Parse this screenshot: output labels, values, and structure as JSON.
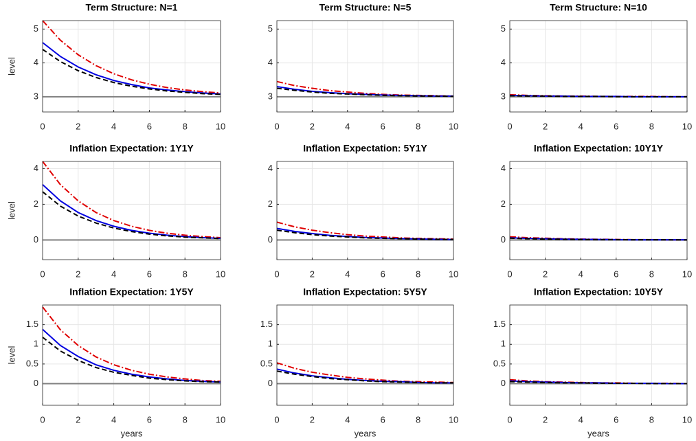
{
  "chart_data": [
    {
      "type": "line",
      "title": "Term Structure: N=1",
      "ylabel": "level",
      "x": [
        0,
        1,
        2,
        3,
        4,
        5,
        6,
        7,
        8,
        9,
        10
      ],
      "xlim": [
        0,
        10
      ],
      "xticks": [
        0,
        2,
        4,
        6,
        8,
        10
      ],
      "ylim": [
        2.55,
        5.25
      ],
      "yticks": [
        3,
        4,
        5
      ],
      "grid": true,
      "reference_line": 3,
      "series": [
        {
          "color": "#e00000",
          "style": "dash-dot",
          "values": [
            5.25,
            4.67,
            4.24,
            3.92,
            3.68,
            3.5,
            3.37,
            3.27,
            3.2,
            3.15,
            3.11
          ]
        },
        {
          "color": "#0000e0",
          "style": "solid",
          "values": [
            4.6,
            4.19,
            3.88,
            3.65,
            3.48,
            3.36,
            3.26,
            3.2,
            3.15,
            3.11,
            3.08
          ]
        },
        {
          "color": "#000000",
          "style": "dashed",
          "values": [
            4.4,
            4.04,
            3.77,
            3.57,
            3.42,
            3.31,
            3.23,
            3.17,
            3.13,
            3.09,
            3.07
          ]
        }
      ]
    },
    {
      "type": "line",
      "title": "Term Structure: N=5",
      "x": [
        0,
        1,
        2,
        3,
        4,
        5,
        6,
        7,
        8,
        9,
        10
      ],
      "xlim": [
        0,
        10
      ],
      "xticks": [
        0,
        2,
        4,
        6,
        8,
        10
      ],
      "ylim": [
        2.55,
        5.25
      ],
      "yticks": [
        3,
        4,
        5
      ],
      "grid": true,
      "reference_line": 3,
      "series": [
        {
          "color": "#e00000",
          "style": "dash-dot",
          "values": [
            3.45,
            3.33,
            3.25,
            3.18,
            3.14,
            3.1,
            3.07,
            3.05,
            3.04,
            3.03,
            3.02
          ]
        },
        {
          "color": "#0000e0",
          "style": "solid",
          "values": [
            3.3,
            3.22,
            3.16,
            3.12,
            3.09,
            3.07,
            3.05,
            3.04,
            3.03,
            3.02,
            3.02
          ]
        },
        {
          "color": "#000000",
          "style": "dashed",
          "values": [
            3.25,
            3.19,
            3.14,
            3.1,
            3.08,
            3.06,
            3.04,
            3.03,
            3.02,
            3.02,
            3.01
          ]
        }
      ]
    },
    {
      "type": "line",
      "title": "Term Structure: N=10",
      "x": [
        0,
        1,
        2,
        3,
        4,
        5,
        6,
        7,
        8,
        9,
        10
      ],
      "xlim": [
        0,
        10
      ],
      "xticks": [
        0,
        2,
        4,
        6,
        8,
        10
      ],
      "ylim": [
        2.55,
        5.25
      ],
      "yticks": [
        3,
        4,
        5
      ],
      "grid": true,
      "reference_line": 3,
      "series": [
        {
          "color": "#e00000",
          "style": "dash-dot",
          "values": [
            3.06,
            3.04,
            3.03,
            3.02,
            3.02,
            3.01,
            3.01,
            3.01,
            3.01,
            3.0,
            3.0
          ]
        },
        {
          "color": "#0000e0",
          "style": "solid",
          "values": [
            3.04,
            3.03,
            3.02,
            3.02,
            3.01,
            3.01,
            3.01,
            3.0,
            3.0,
            3.0,
            3.0
          ]
        },
        {
          "color": "#000000",
          "style": "dashed",
          "values": [
            3.03,
            3.02,
            3.02,
            3.01,
            3.01,
            3.01,
            3.0,
            3.0,
            3.0,
            3.0,
            3.0
          ]
        }
      ]
    },
    {
      "type": "line",
      "title": "Inflation Expectation: 1Y1Y",
      "ylabel": "level",
      "x": [
        0,
        1,
        2,
        3,
        4,
        5,
        6,
        7,
        8,
        9,
        10
      ],
      "xlim": [
        0,
        10
      ],
      "xticks": [
        0,
        2,
        4,
        6,
        8,
        10
      ],
      "ylim": [
        -1.1,
        4.4
      ],
      "yticks": [
        0,
        2,
        4
      ],
      "grid": true,
      "reference_line": 0,
      "series": [
        {
          "color": "#e00000",
          "style": "dash-dot",
          "values": [
            4.4,
            3.1,
            2.19,
            1.54,
            1.09,
            0.77,
            0.54,
            0.38,
            0.27,
            0.19,
            0.13
          ]
        },
        {
          "color": "#0000e0",
          "style": "solid",
          "values": [
            3.1,
            2.19,
            1.54,
            1.09,
            0.77,
            0.54,
            0.38,
            0.27,
            0.19,
            0.13,
            0.09
          ]
        },
        {
          "color": "#000000",
          "style": "dashed",
          "values": [
            2.7,
            1.9,
            1.34,
            0.95,
            0.67,
            0.47,
            0.33,
            0.23,
            0.16,
            0.12,
            0.08
          ]
        }
      ]
    },
    {
      "type": "line",
      "title": "Inflation Expectation: 5Y1Y",
      "x": [
        0,
        1,
        2,
        3,
        4,
        5,
        6,
        7,
        8,
        9,
        10
      ],
      "xlim": [
        0,
        10
      ],
      "xticks": [
        0,
        2,
        4,
        6,
        8,
        10
      ],
      "ylim": [
        -1.1,
        4.4
      ],
      "yticks": [
        0,
        2,
        4
      ],
      "grid": true,
      "reference_line": 0,
      "series": [
        {
          "color": "#e00000",
          "style": "dash-dot",
          "values": [
            1.0,
            0.74,
            0.55,
            0.41,
            0.3,
            0.22,
            0.17,
            0.12,
            0.09,
            0.07,
            0.05
          ]
        },
        {
          "color": "#0000e0",
          "style": "solid",
          "values": [
            0.65,
            0.48,
            0.36,
            0.26,
            0.2,
            0.14,
            0.11,
            0.08,
            0.06,
            0.04,
            0.03
          ]
        },
        {
          "color": "#000000",
          "style": "dashed",
          "values": [
            0.55,
            0.41,
            0.3,
            0.22,
            0.17,
            0.12,
            0.09,
            0.07,
            0.05,
            0.04,
            0.03
          ]
        }
      ]
    },
    {
      "type": "line",
      "title": "Inflation Expectation: 10Y1Y",
      "x": [
        0,
        1,
        2,
        3,
        4,
        5,
        6,
        7,
        8,
        9,
        10
      ],
      "xlim": [
        0,
        10
      ],
      "xticks": [
        0,
        2,
        4,
        6,
        8,
        10
      ],
      "ylim": [
        -1.1,
        4.4
      ],
      "yticks": [
        0,
        2,
        4
      ],
      "grid": true,
      "reference_line": 0,
      "series": [
        {
          "color": "#e00000",
          "style": "dash-dot",
          "values": [
            0.18,
            0.13,
            0.1,
            0.07,
            0.05,
            0.04,
            0.03,
            0.02,
            0.02,
            0.01,
            0.01
          ]
        },
        {
          "color": "#0000e0",
          "style": "solid",
          "values": [
            0.12,
            0.09,
            0.07,
            0.05,
            0.04,
            0.03,
            0.02,
            0.01,
            0.01,
            0.01,
            0.01
          ]
        },
        {
          "color": "#000000",
          "style": "dashed",
          "values": [
            0.1,
            0.07,
            0.05,
            0.04,
            0.03,
            0.02,
            0.02,
            0.01,
            0.01,
            0.01,
            0.0
          ]
        }
      ]
    },
    {
      "type": "line",
      "title": "Inflation Expectation: 1Y5Y",
      "ylabel": "level",
      "xlabel": "years",
      "x": [
        0,
        1,
        2,
        3,
        4,
        5,
        6,
        7,
        8,
        9,
        10
      ],
      "xlim": [
        0,
        10
      ],
      "xticks": [
        0,
        2,
        4,
        6,
        8,
        10
      ],
      "ylim": [
        -0.55,
        2.0
      ],
      "yticks": [
        0,
        0.5,
        1,
        1.5
      ],
      "grid": true,
      "reference_line": 0,
      "series": [
        {
          "color": "#e00000",
          "style": "dash-dot",
          "values": [
            1.95,
            1.37,
            0.97,
            0.68,
            0.48,
            0.34,
            0.24,
            0.17,
            0.12,
            0.08,
            0.06
          ]
        },
        {
          "color": "#0000e0",
          "style": "solid",
          "values": [
            1.38,
            0.97,
            0.69,
            0.48,
            0.34,
            0.24,
            0.17,
            0.12,
            0.08,
            0.06,
            0.04
          ]
        },
        {
          "color": "#000000",
          "style": "dashed",
          "values": [
            1.18,
            0.83,
            0.59,
            0.41,
            0.29,
            0.21,
            0.14,
            0.1,
            0.07,
            0.05,
            0.04
          ]
        }
      ]
    },
    {
      "type": "line",
      "title": "Inflation Expectation: 5Y5Y",
      "xlabel": "years",
      "x": [
        0,
        1,
        2,
        3,
        4,
        5,
        6,
        7,
        8,
        9,
        10
      ],
      "xlim": [
        0,
        10
      ],
      "xticks": [
        0,
        2,
        4,
        6,
        8,
        10
      ],
      "ylim": [
        -0.55,
        2.0
      ],
      "yticks": [
        0,
        0.5,
        1,
        1.5
      ],
      "grid": true,
      "reference_line": 0,
      "series": [
        {
          "color": "#e00000",
          "style": "dash-dot",
          "values": [
            0.53,
            0.39,
            0.29,
            0.22,
            0.16,
            0.12,
            0.09,
            0.06,
            0.05,
            0.04,
            0.03
          ]
        },
        {
          "color": "#0000e0",
          "style": "solid",
          "values": [
            0.37,
            0.27,
            0.2,
            0.15,
            0.11,
            0.08,
            0.06,
            0.05,
            0.03,
            0.02,
            0.02
          ]
        },
        {
          "color": "#000000",
          "style": "dashed",
          "values": [
            0.32,
            0.24,
            0.18,
            0.13,
            0.1,
            0.07,
            0.05,
            0.04,
            0.03,
            0.02,
            0.02
          ]
        }
      ]
    },
    {
      "type": "line",
      "title": "Inflation Expectation: 10Y5Y",
      "xlabel": "years",
      "x": [
        0,
        1,
        2,
        3,
        4,
        5,
        6,
        7,
        8,
        9,
        10
      ],
      "xlim": [
        0,
        10
      ],
      "xticks": [
        0,
        2,
        4,
        6,
        8,
        10
      ],
      "ylim": [
        -0.55,
        2.0
      ],
      "yticks": [
        0,
        0.5,
        1,
        1.5
      ],
      "grid": true,
      "reference_line": 0,
      "series": [
        {
          "color": "#e00000",
          "style": "dash-dot",
          "values": [
            0.1,
            0.07,
            0.05,
            0.04,
            0.03,
            0.02,
            0.02,
            0.01,
            0.01,
            0.01,
            0.0
          ]
        },
        {
          "color": "#0000e0",
          "style": "solid",
          "values": [
            0.07,
            0.05,
            0.04,
            0.03,
            0.02,
            0.02,
            0.01,
            0.01,
            0.01,
            0.0,
            0.0
          ]
        },
        {
          "color": "#000000",
          "style": "dashed",
          "values": [
            0.05,
            0.04,
            0.03,
            0.02,
            0.02,
            0.01,
            0.01,
            0.01,
            0.0,
            0.0,
            0.0
          ]
        }
      ]
    }
  ]
}
